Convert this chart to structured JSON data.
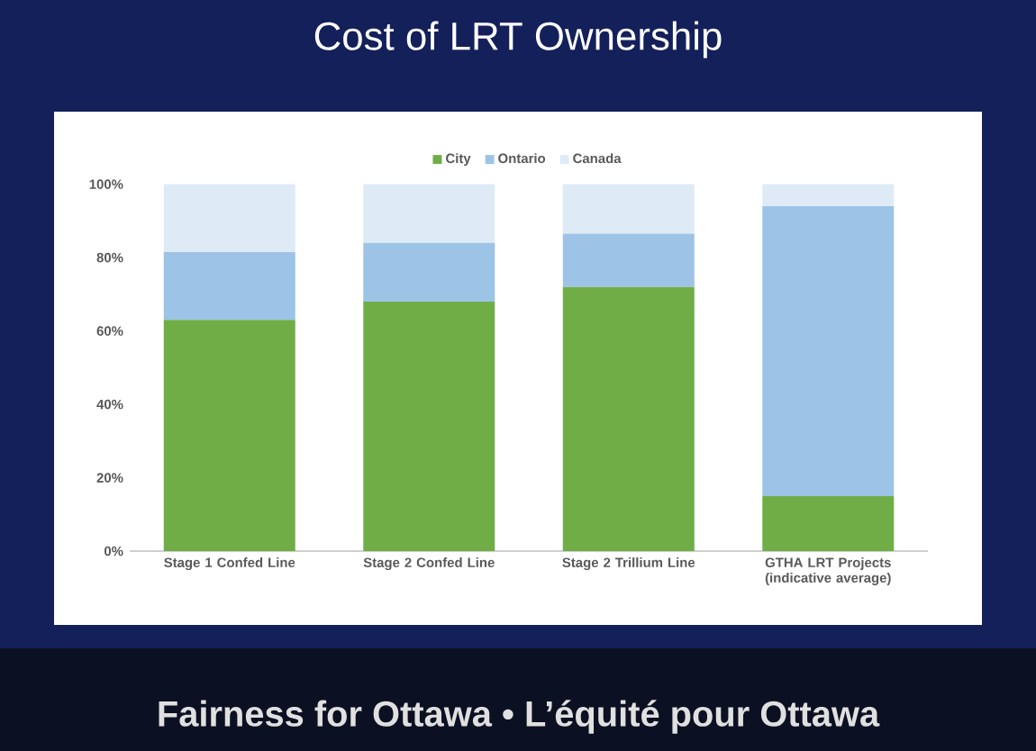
{
  "chart_data": {
    "type": "bar",
    "stacked": true,
    "title": "Cost of LRT Ownership",
    "categories": [
      "Stage 1 Confed Line",
      "Stage 2 Confed Line",
      "Stage 2 Trillium Line",
      "GTHA LRT Projects (indicative average)"
    ],
    "series": [
      {
        "name": "City",
        "color": "#70ad47",
        "values": [
          63,
          68,
          72,
          15
        ]
      },
      {
        "name": "Ontario",
        "color": "#9dc3e6",
        "values": [
          18.5,
          16,
          14.5,
          79
        ]
      },
      {
        "name": "Canada",
        "color": "#deebf7",
        "values": [
          18.5,
          16,
          13.5,
          6
        ]
      }
    ],
    "ylim": [
      0,
      100
    ],
    "yticks": [
      {
        "value": 0,
        "label": "0%"
      },
      {
        "value": 20,
        "label": "20%"
      },
      {
        "value": 40,
        "label": "40%"
      },
      {
        "value": 60,
        "label": "60%"
      },
      {
        "value": 80,
        "label": "80%"
      },
      {
        "value": 100,
        "label": "100%"
      }
    ],
    "grid": false,
    "legend": "top",
    "annotations": [
      "Fairness for Ottawa • L’équité pour Ottawa"
    ]
  }
}
